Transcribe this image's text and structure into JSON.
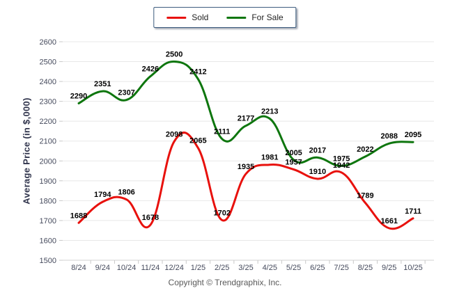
{
  "legend": {
    "items": [
      {
        "label": "Sold",
        "color": "#e8110d"
      },
      {
        "label": "For Sale",
        "color": "#0e760e"
      }
    ]
  },
  "footer": {
    "copyright": "Copyright © Trendgraphix, Inc."
  },
  "chart_data": {
    "type": "line",
    "categories": [
      "8/24",
      "9/24",
      "10/24",
      "11/24",
      "12/24",
      "1/25",
      "2/25",
      "3/25",
      "4/25",
      "5/25",
      "6/25",
      "7/25",
      "8/25",
      "9/25",
      "10/25"
    ],
    "series": [
      {
        "name": "Sold",
        "color": "#e8110d",
        "values": [
          1688,
          1794,
          1806,
          1678,
          2098,
          2065,
          1702,
          1935,
          1981,
          1957,
          1910,
          1942,
          1789,
          1661,
          1711
        ]
      },
      {
        "name": "For Sale",
        "color": "#0e760e",
        "values": [
          2290,
          2351,
          2307,
          2426,
          2500,
          2412,
          2111,
          2177,
          2213,
          2005,
          2017,
          1975,
          2022,
          2088,
          2095
        ]
      }
    ],
    "title": "",
    "xlabel": "",
    "ylabel": "Average Price (in $,000)",
    "ylim": [
      1500,
      2600
    ],
    "ytick_step": 100,
    "grid": "horizontal-only",
    "legend_position": "top-center",
    "line_style": "smooth",
    "point_labels": true
  },
  "style": {
    "grid_color": "#e8e8e8",
    "axis_line_color": "#d2d2d2",
    "tick_color": "#c9c9c9",
    "tick_label_color": "#454a5c",
    "data_label_color": "#000000",
    "axis_title_color": "#31354d",
    "copyright_color": "#595959",
    "legend_border_color": "#3d5c7e",
    "background": "#ffffff"
  }
}
